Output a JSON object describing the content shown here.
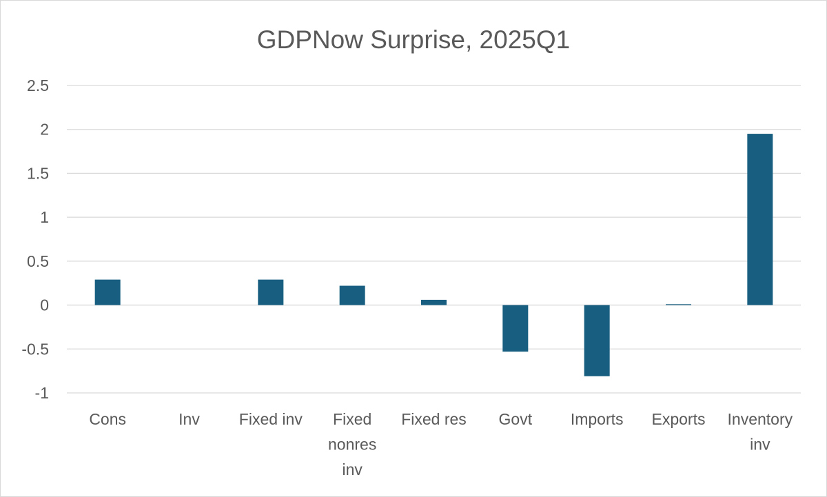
{
  "chart_data": {
    "type": "bar",
    "title": "GDPNow Surprise, 2025Q1",
    "xlabel": "",
    "ylabel": "",
    "categories": [
      [
        "Cons"
      ],
      [
        "Inv"
      ],
      [
        "Fixed inv"
      ],
      [
        "Fixed",
        "nonres",
        "inv"
      ],
      [
        "Fixed res"
      ],
      [
        "Govt"
      ],
      [
        "Imports"
      ],
      [
        "Exports"
      ],
      [
        "Inventory",
        "inv"
      ]
    ],
    "values": [
      0.29,
      0.0,
      0.29,
      0.22,
      0.06,
      -0.53,
      -0.81,
      0.01,
      1.95
    ],
    "ylim": [
      -1,
      2.5
    ],
    "yticks": [
      2.5,
      2,
      1.5,
      1,
      0.5,
      0,
      -0.5,
      -1
    ],
    "ytick_labels": [
      "2.5",
      "2",
      "1.5",
      "1",
      "0.5",
      "0",
      "-0.5",
      "-1"
    ],
    "grid": true,
    "legend": "none",
    "colors": {
      "bar": "#175e80",
      "grid": "#d9d9d9",
      "text": "#595959",
      "border": "#d9d9d9"
    }
  }
}
